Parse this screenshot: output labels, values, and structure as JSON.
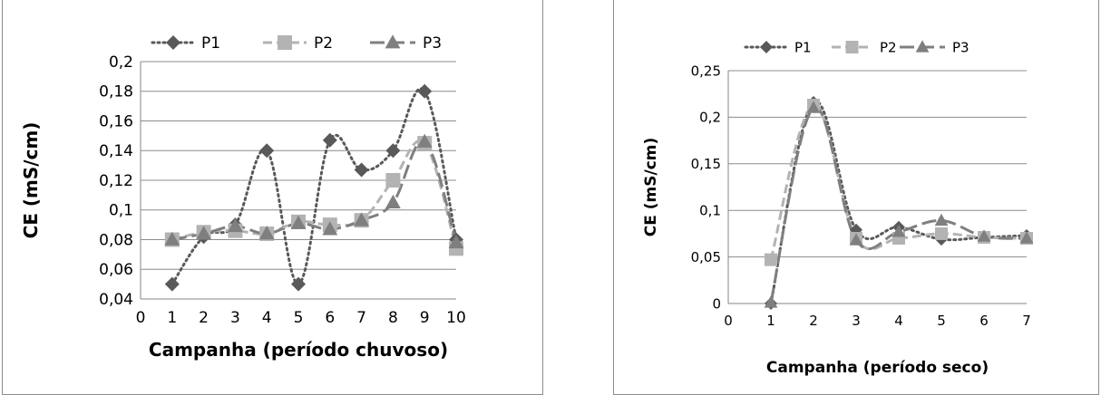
{
  "chart_data": [
    {
      "type": "line",
      "xlabel": "Campanha (período chuvoso)",
      "ylabel": "CE (mS/cm)",
      "xlim": [
        0,
        10
      ],
      "ylim": [
        0.04,
        0.2
      ],
      "x_ticks": [
        "0",
        "1",
        "2",
        "3",
        "4",
        "5",
        "6",
        "7",
        "8",
        "9",
        "10"
      ],
      "y_ticks": [
        "0,04",
        "0,06",
        "0,08",
        "0,1",
        "0,12",
        "0,14",
        "0,16",
        "0,18",
        "0,2"
      ],
      "grid": "horizontal",
      "legend_position": "top",
      "x": [
        1,
        2,
        3,
        4,
        5,
        6,
        7,
        8,
        9,
        10
      ],
      "series": [
        {
          "name": "P1",
          "values": [
            0.05,
            0.082,
            0.09,
            0.14,
            0.05,
            0.147,
            0.127,
            0.14,
            0.18,
            0.08
          ],
          "color": "#595959",
          "marker": "diamond",
          "dash": "dotted"
        },
        {
          "name": "P2",
          "values": [
            0.08,
            0.085,
            0.086,
            0.084,
            0.092,
            0.09,
            0.093,
            0.12,
            0.145,
            0.074
          ],
          "color": "#b3b3b3",
          "marker": "square",
          "dash": "dashed"
        },
        {
          "name": "P3",
          "values": [
            0.08,
            0.084,
            0.089,
            0.084,
            0.091,
            0.087,
            0.093,
            0.105,
            0.146,
            0.078
          ],
          "color": "#7f7f7f",
          "marker": "triangle",
          "dash": "longdash"
        }
      ]
    },
    {
      "type": "line",
      "xlabel": "Campanha (período seco)",
      "ylabel": "CE (mS/cm)",
      "xlim": [
        0,
        7
      ],
      "ylim": [
        0,
        0.25
      ],
      "x_ticks": [
        "0",
        "1",
        "2",
        "3",
        "4",
        "5",
        "6",
        "7"
      ],
      "y_ticks": [
        "0",
        "0,05",
        "0,1",
        "0,15",
        "0,2",
        "0,25"
      ],
      "grid": "horizontal",
      "legend_position": "top",
      "x": [
        1,
        2,
        3,
        4,
        5,
        6,
        7
      ],
      "series": [
        {
          "name": "P1",
          "values": [
            0.0,
            0.216,
            0.079,
            0.082,
            0.069,
            0.071,
            0.073
          ],
          "color": "#595959",
          "marker": "diamond",
          "dash": "dotted"
        },
        {
          "name": "P2",
          "values": [
            0.047,
            0.213,
            0.07,
            0.07,
            0.075,
            0.071,
            0.07
          ],
          "color": "#b3b3b3",
          "marker": "square",
          "dash": "dashed"
        },
        {
          "name": "P3",
          "values": [
            0.001,
            0.21,
            0.068,
            0.077,
            0.089,
            0.072,
            0.07
          ],
          "color": "#7f7f7f",
          "marker": "triangle",
          "dash": "longdash"
        }
      ]
    }
  ]
}
